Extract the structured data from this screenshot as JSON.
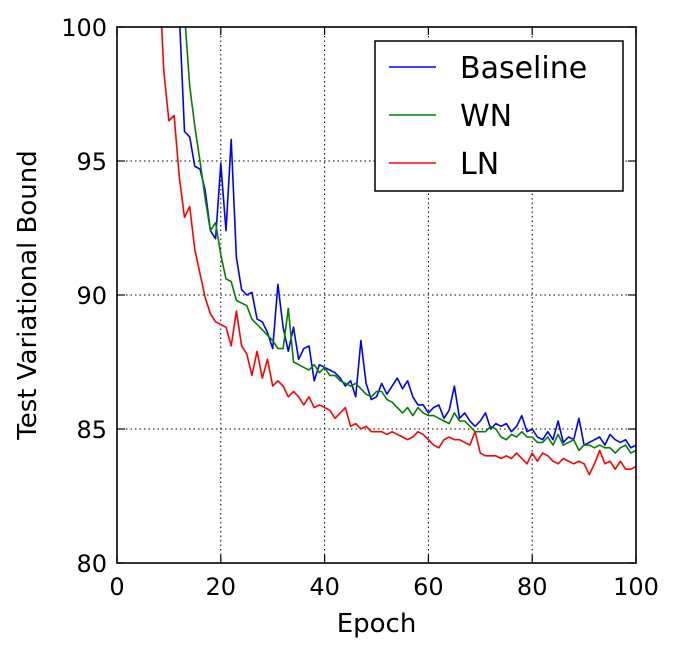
{
  "chart_data": {
    "type": "line",
    "xlabel": "Epoch",
    "ylabel": "Test Variational Bound",
    "xlim": [
      0,
      100
    ],
    "ylim": [
      80,
      100
    ],
    "xticks": [
      "0",
      "20",
      "40",
      "60",
      "80",
      "100"
    ],
    "yticks": [
      "80",
      "85",
      "90",
      "95",
      "100"
    ],
    "grid": true,
    "legend_position": "top-right",
    "series": [
      {
        "name": "Baseline",
        "color": "#0000ff",
        "x": [
          12,
          13,
          14,
          15,
          16,
          17,
          18,
          19,
          20,
          21,
          22,
          23,
          24,
          25,
          26,
          27,
          28,
          29,
          30,
          31,
          32,
          33,
          34,
          35,
          36,
          37,
          38,
          39,
          40,
          41,
          42,
          43,
          44,
          45,
          46,
          47,
          48,
          49,
          50,
          51,
          52,
          53,
          54,
          55,
          56,
          57,
          58,
          59,
          60,
          61,
          62,
          63,
          64,
          65,
          66,
          67,
          68,
          69,
          70,
          71,
          72,
          73,
          74,
          75,
          76,
          77,
          78,
          79,
          80,
          81,
          82,
          83,
          84,
          85,
          86,
          87,
          88,
          89,
          90,
          91,
          92,
          93,
          94,
          95,
          96,
          97,
          98,
          99,
          100
        ],
        "y": [
          100.5,
          96.1,
          95.9,
          94.8,
          94.7,
          93.9,
          92.4,
          92.1,
          94.9,
          92.4,
          95.8,
          91.4,
          90.2,
          90.0,
          90.1,
          89.1,
          89.0,
          88.6,
          88.0,
          90.4,
          88.8,
          87.9,
          88.8,
          87.6,
          88.0,
          88.1,
          86.8,
          87.4,
          87.3,
          87.2,
          87.1,
          86.9,
          86.6,
          86.8,
          86.2,
          88.3,
          86.7,
          86.1,
          86.2,
          86.7,
          86.3,
          86.6,
          86.9,
          86.5,
          86.8,
          86.2,
          85.9,
          85.9,
          85.6,
          85.8,
          85.9,
          85.4,
          85.7,
          86.6,
          85.4,
          85.6,
          85.3,
          85.1,
          85.3,
          85.6,
          85.0,
          85.2,
          85.1,
          85.2,
          84.9,
          85.1,
          85.5,
          84.9,
          85.0,
          84.7,
          84.6,
          84.9,
          84.6,
          85.3,
          84.5,
          84.7,
          84.6,
          85.4,
          84.4,
          84.5,
          84.6,
          84.7,
          84.4,
          84.8,
          84.6,
          84.5,
          84.6,
          84.3,
          84.4
        ]
      },
      {
        "name": "WN",
        "color": "#008000",
        "x": [
          13,
          14,
          15,
          16,
          17,
          18,
          19,
          20,
          21,
          22,
          23,
          24,
          25,
          26,
          27,
          28,
          29,
          30,
          31,
          32,
          33,
          34,
          35,
          36,
          37,
          38,
          39,
          40,
          41,
          42,
          43,
          44,
          45,
          46,
          47,
          48,
          49,
          50,
          51,
          52,
          53,
          54,
          55,
          56,
          57,
          58,
          59,
          60,
          61,
          62,
          63,
          64,
          65,
          66,
          67,
          68,
          69,
          70,
          71,
          72,
          73,
          74,
          75,
          76,
          77,
          78,
          79,
          80,
          81,
          82,
          83,
          84,
          85,
          86,
          87,
          88,
          89,
          90,
          91,
          92,
          93,
          94,
          95,
          96,
          97,
          98,
          99,
          100
        ],
        "y": [
          100.5,
          97.8,
          96.3,
          95.0,
          93.6,
          92.4,
          92.7,
          91.5,
          90.6,
          90.5,
          89.8,
          89.7,
          89.6,
          89.1,
          88.9,
          88.7,
          88.5,
          88.3,
          88.0,
          88.0,
          89.5,
          87.5,
          87.4,
          87.3,
          87.2,
          87.4,
          87.1,
          87.3,
          87.0,
          87.0,
          86.8,
          86.7,
          86.6,
          86.7,
          86.5,
          86.3,
          86.2,
          86.4,
          86.4,
          86.1,
          86.0,
          85.8,
          85.6,
          85.8,
          85.5,
          85.8,
          85.6,
          85.5,
          85.5,
          85.4,
          85.3,
          85.2,
          85.6,
          85.3,
          85.3,
          85.1,
          84.9,
          84.9,
          84.9,
          85.1,
          85.0,
          84.7,
          84.6,
          84.8,
          84.7,
          84.9,
          84.7,
          84.7,
          84.5,
          84.5,
          84.7,
          84.4,
          84.8,
          84.4,
          84.5,
          84.6,
          84.2,
          84.4,
          84.4,
          84.3,
          84.4,
          84.3,
          84.3,
          84.1,
          84.3,
          84.4,
          84.1,
          84.2
        ]
      },
      {
        "name": "LN",
        "color": "#ff0000",
        "x": [
          8.5,
          9,
          10,
          11,
          12,
          13,
          14,
          15,
          16,
          17,
          18,
          19,
          20,
          21,
          22,
          23,
          24,
          25,
          26,
          27,
          28,
          29,
          30,
          31,
          32,
          33,
          34,
          35,
          36,
          37,
          38,
          39,
          40,
          41,
          42,
          43,
          44,
          45,
          46,
          47,
          48,
          49,
          50,
          51,
          52,
          53,
          54,
          55,
          56,
          57,
          58,
          59,
          60,
          61,
          62,
          63,
          64,
          65,
          66,
          67,
          68,
          69,
          70,
          71,
          72,
          73,
          74,
          75,
          76,
          77,
          78,
          79,
          80,
          81,
          82,
          83,
          84,
          85,
          86,
          87,
          88,
          89,
          90,
          91,
          92,
          93,
          94,
          95,
          96,
          97,
          98,
          99,
          100
        ],
        "y": [
          100.5,
          98.4,
          96.5,
          96.7,
          94.4,
          92.9,
          93.3,
          91.7,
          90.8,
          89.9,
          89.3,
          89.0,
          88.9,
          88.8,
          88.1,
          89.4,
          88.1,
          87.8,
          87.0,
          87.9,
          86.9,
          87.6,
          86.6,
          86.8,
          86.6,
          86.2,
          86.4,
          86.2,
          85.9,
          86.2,
          85.8,
          85.9,
          85.8,
          85.7,
          85.4,
          85.6,
          85.8,
          85.1,
          85.2,
          85.0,
          85.1,
          84.9,
          84.9,
          84.9,
          84.8,
          84.9,
          84.8,
          84.7,
          84.6,
          84.7,
          84.9,
          84.8,
          84.6,
          84.4,
          84.3,
          84.6,
          84.7,
          84.6,
          84.6,
          84.5,
          84.4,
          84.9,
          84.1,
          84.0,
          84.0,
          84.0,
          83.9,
          84.0,
          83.9,
          84.1,
          83.9,
          83.7,
          84.1,
          83.8,
          84.1,
          84.0,
          83.8,
          83.7,
          83.9,
          83.8,
          83.7,
          83.8,
          83.7,
          83.3,
          83.7,
          84.2,
          83.7,
          83.8,
          83.5,
          83.8,
          83.5,
          83.5,
          83.6
        ]
      }
    ]
  }
}
